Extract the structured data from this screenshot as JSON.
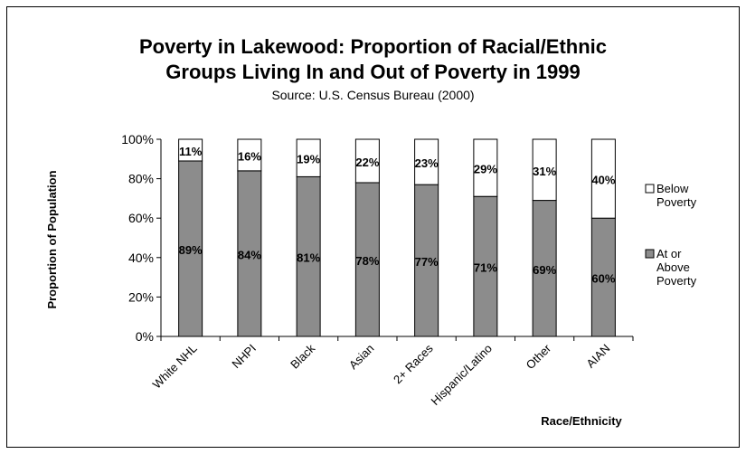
{
  "chart_data": {
    "type": "bar",
    "stacked": true,
    "title_line1": "Poverty in Lakewood: Proportion of Racial/Ethnic",
    "title_line2": "Groups Living In and Out of Poverty in 1999",
    "subtitle": "Source: U.S. Census Bureau (2000)",
    "xlabel": "Race/Ethnicity",
    "ylabel": "Proportion of Population",
    "ylim": [
      0,
      100
    ],
    "yticks": [
      "0%",
      "20%",
      "40%",
      "60%",
      "80%",
      "100%"
    ],
    "categories": [
      "White NHL",
      "NHPI",
      "Black",
      "Asian",
      "2+ Races",
      "Hispanic/Latino",
      "Other",
      "AIAN"
    ],
    "series": [
      {
        "name": "At or Above Poverty",
        "color": "#8c8c8c",
        "values": [
          89,
          84,
          81,
          78,
          77,
          71,
          69,
          60
        ],
        "labels": [
          "89%",
          "84%",
          "81%",
          "78%",
          "77%",
          "71%",
          "69%",
          "60%"
        ]
      },
      {
        "name": "Below Poverty",
        "color": "#ffffff",
        "values": [
          11,
          16,
          19,
          22,
          23,
          29,
          31,
          40
        ],
        "labels": [
          "11%",
          "16%",
          "19%",
          "22%",
          "23%",
          "29%",
          "31%",
          "40%"
        ]
      }
    ],
    "legend": {
      "position": "right",
      "entries": [
        {
          "lines": [
            "Below",
            "Poverty"
          ],
          "color": "#ffffff"
        },
        {
          "lines": [
            "At or",
            "Above",
            "Poverty"
          ],
          "color": "#8c8c8c"
        }
      ]
    }
  }
}
